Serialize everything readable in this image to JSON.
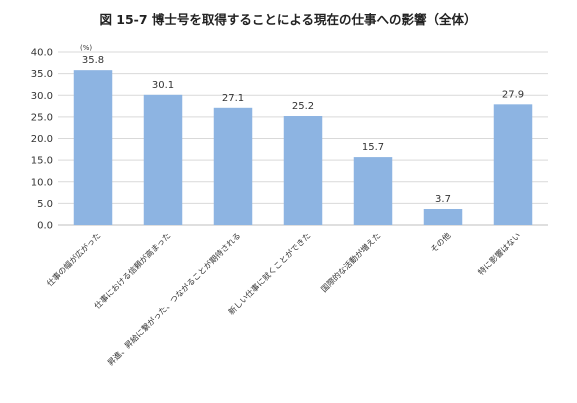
{
  "chart_data": {
    "type": "bar",
    "title": "図 15-7 博士号を取得することによる現在の仕事への影響（全体）",
    "ylabel": "",
    "xlabel": "",
    "y_unit": "(%)",
    "ylim": [
      0,
      40
    ],
    "yticks": [
      "0.0",
      "5.0",
      "10.0",
      "15.0",
      "20.0",
      "25.0",
      "30.0",
      "35.0",
      "40.0"
    ],
    "grid": true,
    "legend": "none",
    "bar_color": "#8db4e2",
    "categories": [
      "仕事の幅が広がった",
      "仕事における信頼が高まった",
      "昇進、昇給に繋がった、つながることが期待される",
      "新しい仕事に就くことができた",
      "国際的な活動が増えた",
      "その他",
      "特に影響はない"
    ],
    "values": [
      35.8,
      30.1,
      27.1,
      25.2,
      15.7,
      3.7,
      27.9
    ],
    "value_labels": [
      "35.8",
      "30.1",
      "27.1",
      "25.2",
      "15.7",
      "3.7",
      "27.9"
    ]
  }
}
